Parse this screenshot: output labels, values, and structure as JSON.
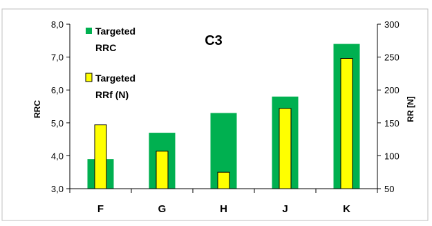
{
  "chart_data": {
    "type": "bar",
    "title": "C3",
    "categories": [
      "F",
      "G",
      "H",
      "J",
      "K"
    ],
    "left_axis": {
      "label": "RRC",
      "ylim": [
        3.0,
        8.0
      ],
      "ticks": [
        "3,0",
        "4,0",
        "5,0",
        "6,0",
        "7,0",
        "8,0"
      ]
    },
    "right_axis": {
      "label": "RR [N]",
      "ylim": [
        50,
        300
      ],
      "ticks": [
        "50",
        "100",
        "150",
        "200",
        "250",
        "300"
      ]
    },
    "series": [
      {
        "name": "Targeted RRC",
        "name_lines": [
          "Targeted",
          "RRC"
        ],
        "axis": "left",
        "color": "#00b050",
        "values": [
          3.9,
          4.7,
          5.3,
          5.8,
          7.4
        ]
      },
      {
        "name": "Targeted RRf (N)",
        "name_lines": [
          "Targeted",
          "RRf (N)"
        ],
        "axis": "right",
        "color": "#ffff00",
        "values": [
          147,
          107,
          75,
          172,
          248
        ]
      }
    ],
    "legend": "top-left",
    "grid": false
  }
}
